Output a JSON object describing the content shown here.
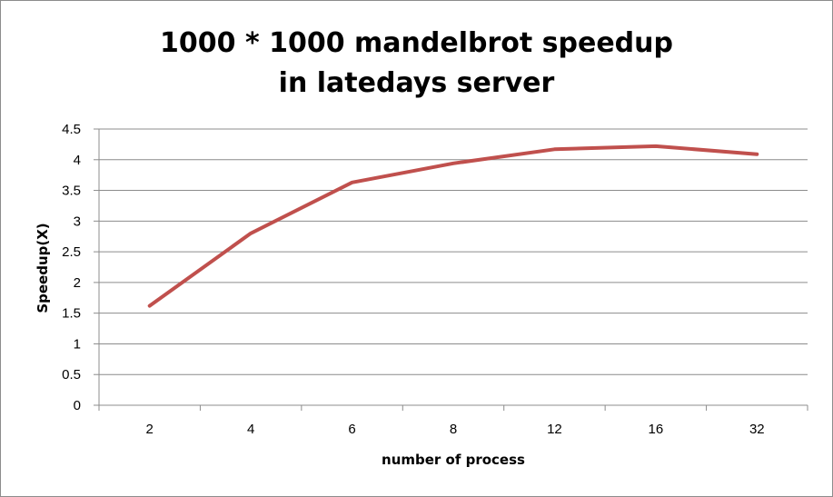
{
  "chart_data": {
    "type": "line",
    "title_line1": "1000 * 1000 mandelbrot speedup",
    "title_line2": "in latedays server",
    "xlabel": "number of process",
    "ylabel": "Speedup(X)",
    "categories": [
      "2",
      "4",
      "6",
      "8",
      "12",
      "16",
      "32"
    ],
    "values": [
      1.62,
      2.8,
      3.63,
      3.94,
      4.17,
      4.22,
      4.09
    ],
    "ylim": [
      0,
      4.5
    ],
    "yticks": [
      "0",
      "0.5",
      "1",
      "1.5",
      "2",
      "2.5",
      "3",
      "3.5",
      "4",
      "4.5"
    ],
    "grid": true,
    "legend": "none",
    "line_color": "#c0504d",
    "grid_color": "#8c8c8c"
  }
}
